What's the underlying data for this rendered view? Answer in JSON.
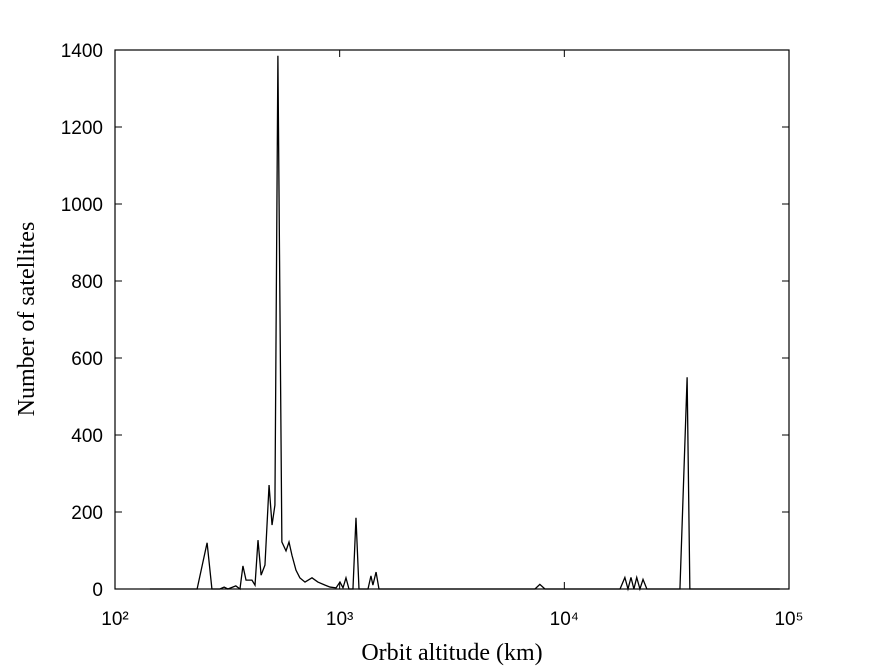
{
  "chart_data": {
    "type": "line",
    "x_label": "Orbit altitude (km)",
    "y_label": "Number of satellites",
    "xscale": "log",
    "xlim": [
      100,
      100000
    ],
    "xticks": [
      {
        "value": 100,
        "label": "10²"
      },
      {
        "value": 1000,
        "label": "10³"
      },
      {
        "value": 10000,
        "label": "10⁴"
      },
      {
        "value": 100000,
        "label": "10⁵"
      }
    ],
    "ylim": [
      0,
      1400
    ],
    "yticks": [
      0,
      200,
      400,
      600,
      800,
      1000,
      1200,
      1400
    ],
    "color": "#000000",
    "x": [
      143,
      195,
      232,
      257,
      270,
      293,
      306,
      318,
      345,
      360,
      371,
      383,
      407,
      420,
      433,
      447,
      465,
      485,
      500,
      515,
      531,
      553,
      577,
      595,
      613,
      639,
      665,
      701,
      753,
      800,
      861,
      906,
      964,
      1003,
      1035,
      1067,
      1100,
      1146,
      1182,
      1219,
      1337,
      1378,
      1406,
      1452,
      1496,
      1675,
      7400,
      7780,
      8200,
      17700,
      18600,
      19200,
      19800,
      20400,
      21000,
      21700,
      22400,
      23300,
      32700,
      35200,
      36200,
      91000
    ],
    "values": [
      0,
      0,
      0,
      120,
      0,
      0,
      5,
      0,
      8,
      0,
      60,
      23,
      23,
      10,
      127,
      36,
      62,
      270,
      166,
      218,
      1385,
      122,
      99,
      122,
      88,
      49,
      29,
      18,
      29,
      18,
      10,
      5,
      3,
      18,
      3,
      29,
      0,
      0,
      185,
      0,
      0,
      34,
      10,
      44,
      0,
      0,
      0,
      12,
      0,
      0,
      30,
      0,
      30,
      0,
      30,
      0,
      25,
      0,
      0,
      550,
      0,
      0
    ]
  }
}
